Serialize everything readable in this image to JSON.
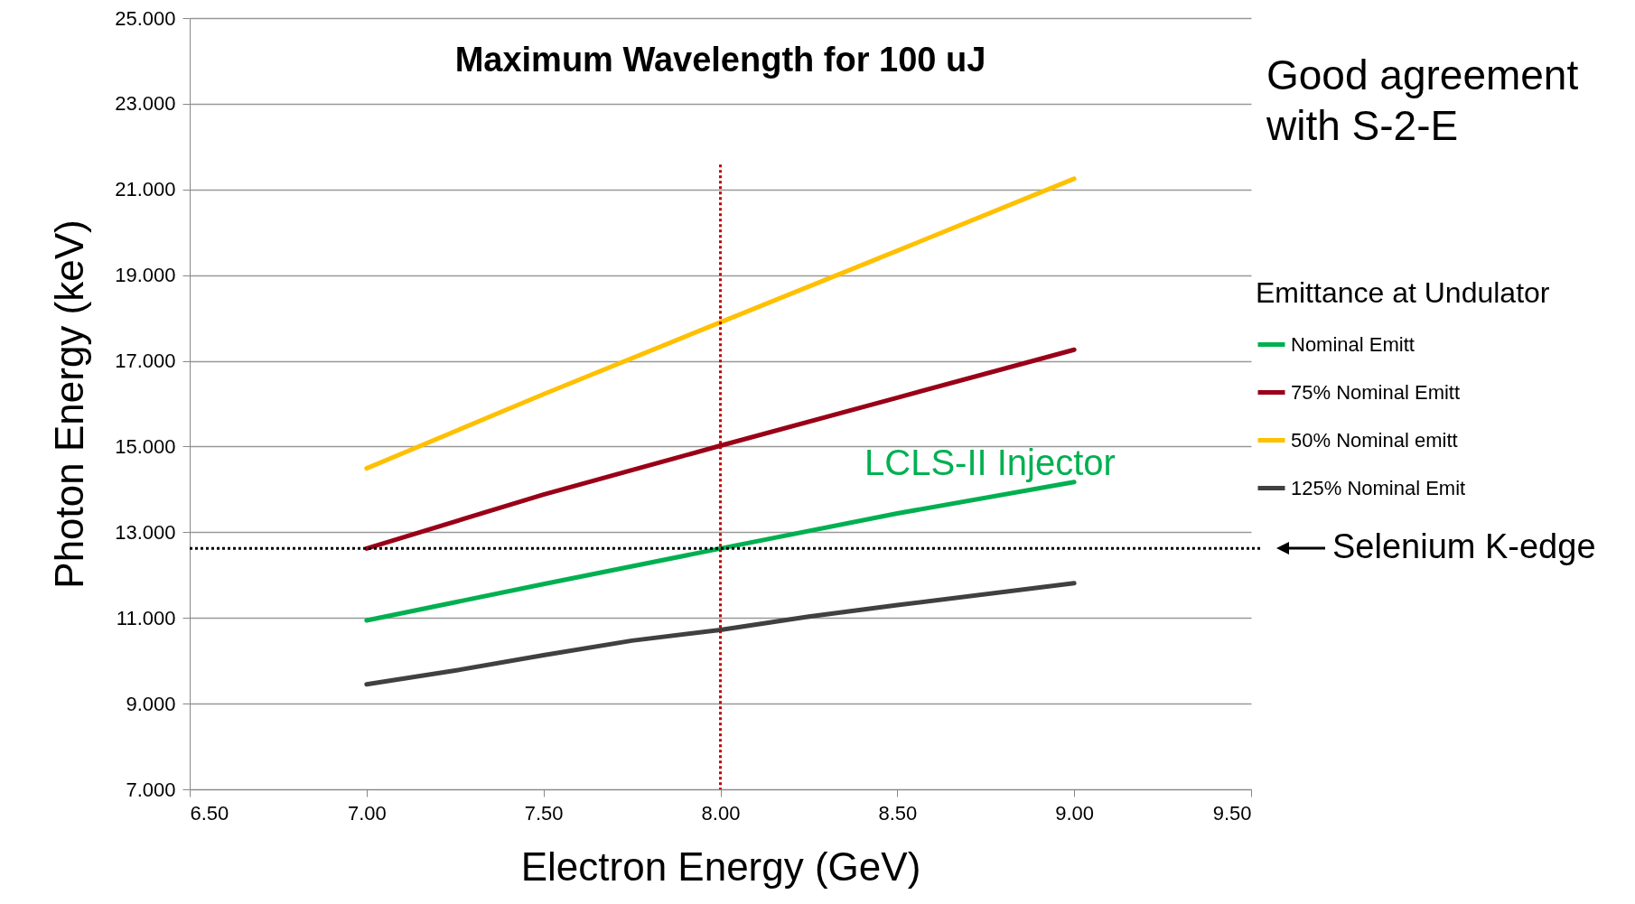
{
  "chart_data": {
    "type": "line",
    "title": "Maximum Wavelength for 100 uJ",
    "xlabel": "Electron Energy (GeV)",
    "ylabel": "Photon Energy (keV)",
    "legend_title": "Emittance at Undulator",
    "legend": "right",
    "grid": "y",
    "line_style": "solid",
    "marker": "none",
    "xlim": [
      6.5,
      9.5
    ],
    "xticks": [
      {
        "value": 6.5,
        "label": "6.50"
      },
      {
        "value": 7,
        "label": "7.00"
      },
      {
        "value": 7.5,
        "label": "7.50"
      },
      {
        "value": 8,
        "label": "8.00"
      },
      {
        "value": 8.5,
        "label": "8.50"
      },
      {
        "value": 9,
        "label": "9.00"
      },
      {
        "value": 9.5,
        "label": "9.50"
      }
    ],
    "ylim": [
      7,
      25
    ],
    "yticks": [
      {
        "value": 7,
        "label": "7.000"
      },
      {
        "value": 9,
        "label": "9.000"
      },
      {
        "value": 11,
        "label": "11.000"
      },
      {
        "value": 13,
        "label": "13.000"
      },
      {
        "value": 15,
        "label": "15.000"
      },
      {
        "value": 17,
        "label": "17.000"
      },
      {
        "value": 19,
        "label": "19.000"
      },
      {
        "value": 21,
        "label": "21.000"
      },
      {
        "value": 23,
        "label": "23.000"
      },
      {
        "value": 25,
        "label": "25.000"
      }
    ],
    "series": [
      {
        "name": "Nominal Emitt",
        "color": "#00b050",
        "x": [
          7,
          7.5,
          8,
          8.5,
          9
        ],
        "values": [
          10.94,
          11.79,
          12.62,
          13.44,
          14.17
        ]
      },
      {
        "name": "75% Nominal Emitt",
        "color": "#990018",
        "x": [
          7,
          7.5,
          8,
          8.5,
          9
        ],
        "values": [
          12.62,
          13.88,
          15.02,
          16.14,
          17.26
        ]
      },
      {
        "name": "50% Nominal emitt",
        "color": "#ffc000",
        "x": [
          7,
          7.5,
          8,
          8.5,
          9
        ],
        "values": [
          14.49,
          16.22,
          17.9,
          19.57,
          21.25
        ]
      },
      {
        "name": "125% Nominal Emit",
        "color": "#404040",
        "x": [
          7,
          7.25,
          7.5,
          7.75,
          8,
          8.25,
          8.5,
          9
        ],
        "values": [
          9.45,
          9.77,
          10.13,
          10.47,
          10.72,
          11.03,
          11.3,
          11.81
        ]
      }
    ],
    "ref_lines": [
      {
        "axis": "y",
        "value": 12.62,
        "label": "Selenium K-edge",
        "color": "#000000",
        "line_style": "dotted"
      },
      {
        "axis": "x",
        "value": 8,
        "color": "#c00000",
        "line_style": "dotted"
      }
    ],
    "annotations": [
      "LCLS-II Injector",
      "Good agreement with S-2-E"
    ]
  }
}
